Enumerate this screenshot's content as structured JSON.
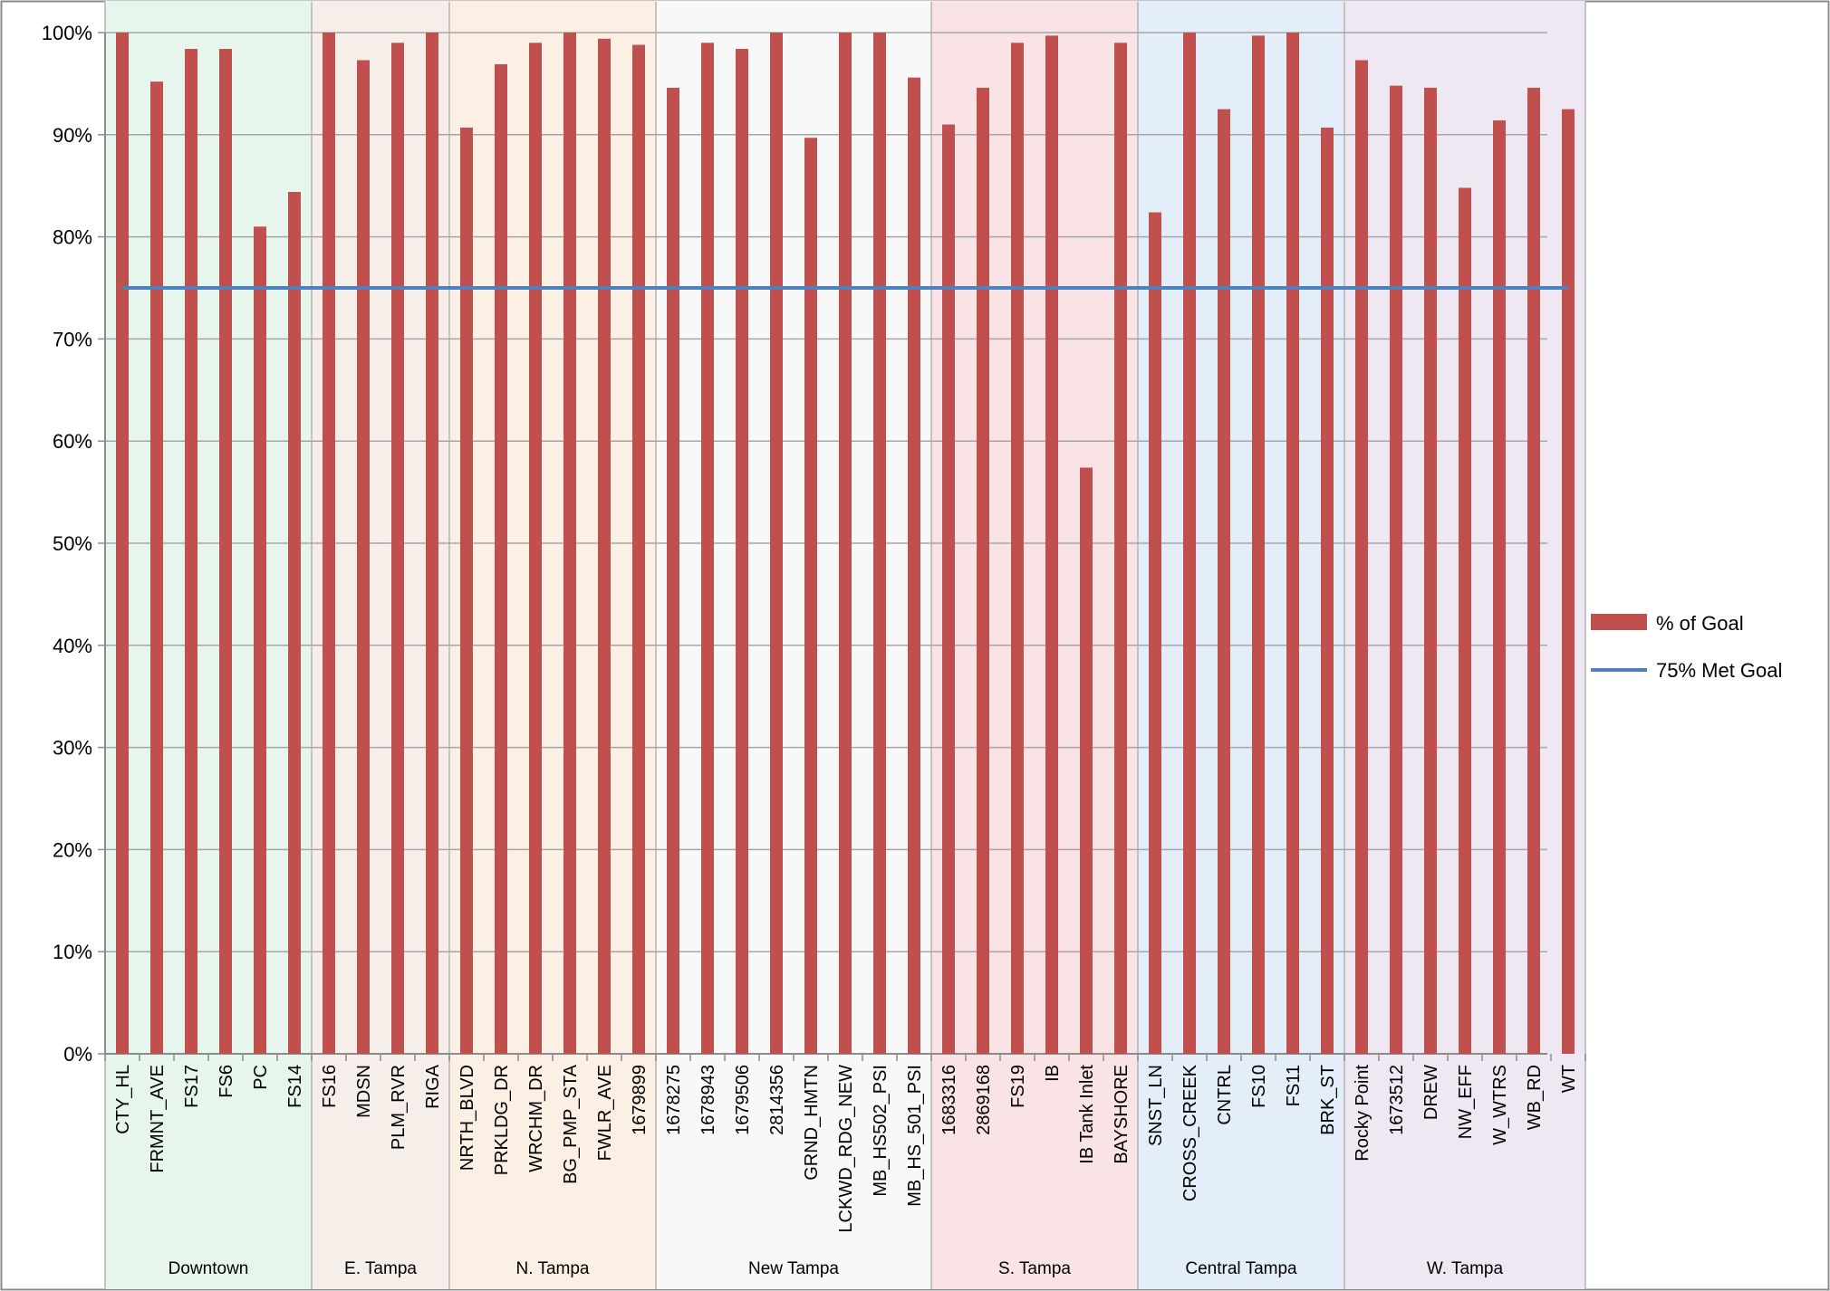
{
  "chart_data": {
    "type": "bar",
    "ylim": [
      0,
      100
    ],
    "yticks": [
      0,
      10,
      20,
      30,
      40,
      50,
      60,
      70,
      80,
      90,
      100
    ],
    "ytick_labels": [
      "0%",
      "10%",
      "20%",
      "30%",
      "40%",
      "50%",
      "60%",
      "70%",
      "80%",
      "90%",
      "100%"
    ],
    "grid": true,
    "legend_position": "right",
    "colors": {
      "bar": "#c0504d",
      "goal_line": "#4f81bd"
    },
    "series": [
      {
        "name": "% of Goal",
        "type": "bar"
      },
      {
        "name": "75% Met Goal",
        "type": "line",
        "value": 75
      }
    ],
    "groups": [
      {
        "name": "Downtown",
        "color": "#e6f6ec",
        "categories": [
          "CTY_HL",
          "FRMNT_AVE",
          "FS17",
          "FS6",
          "PC",
          "FS14"
        ],
        "values": [
          100,
          95.2,
          98.4,
          98.4,
          81,
          84.4
        ]
      },
      {
        "name": "E. Tampa",
        "color": "#f6efe9",
        "categories": [
          "FS16",
          "MDSN",
          "PLM_RVR",
          "RIGA"
        ],
        "values": [
          100,
          97.3,
          99,
          100
        ]
      },
      {
        "name": "N. Tampa",
        "color": "#fcefe3",
        "categories": [
          "NRTH_BLVD",
          "PRKLDG_DR",
          "WRCHM_DR",
          "BG_PMP_STA",
          "FWLR_AVE",
          "1679899"
        ],
        "values": [
          90.7,
          96.9,
          99,
          100,
          99.4,
          98.8
        ]
      },
      {
        "name": "New Tampa",
        "color": "#f8f8f9",
        "categories": [
          "1678275",
          "1678943",
          "1679506",
          "2814356",
          "GRND_HMTN",
          "LCKWD_RDG_NEW",
          "MB_HS502_PSI",
          "MB_HS_501_PSI"
        ],
        "values": [
          94.6,
          99,
          98.4,
          100,
          89.7,
          100,
          100,
          95.6
        ]
      },
      {
        "name": "S. Tampa",
        "color": "#f9e3e4",
        "categories": [
          "1683316",
          "2869168",
          "FS19",
          "IB",
          "IB Tank Inlet",
          "BAYSHORE"
        ],
        "values": [
          91,
          94.6,
          99,
          99.7,
          57.4,
          99
        ]
      },
      {
        "name": "Central Tampa",
        "color": "#e4eef8",
        "categories": [
          "SNST_LN",
          "CROSS_CREEK",
          "CNTRL",
          "FS10",
          "FS11",
          "BRK_ST"
        ],
        "values": [
          82.4,
          100,
          92.5,
          99.7,
          100,
          90.7
        ]
      },
      {
        "name": "W. Tampa",
        "color": "#efe8f2",
        "categories": [
          "Rocky Point",
          "1673512",
          "DREW",
          "NW_EFF",
          "W_WTRS",
          "WB_RD",
          "WT"
        ],
        "values": [
          97.3,
          94.8,
          94.6,
          84.8,
          91.4,
          94.6,
          92.5
        ]
      }
    ]
  }
}
